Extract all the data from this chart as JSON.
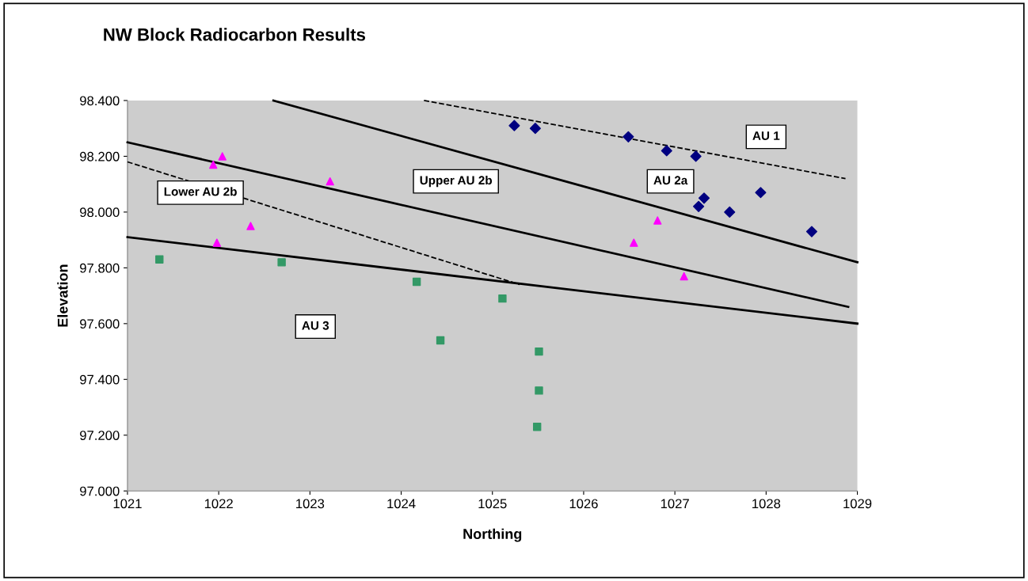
{
  "chart_data": {
    "type": "scatter",
    "title": "NW Block Radiocarbon Results",
    "xlabel": "Northing",
    "ylabel": "Elevation",
    "xlim": [
      1021,
      1029
    ],
    "xticks": [
      1021,
      1022,
      1023,
      1024,
      1025,
      1026,
      1027,
      1028,
      1029
    ],
    "ylim": [
      97.0,
      98.4
    ],
    "yticks": [
      {
        "value": 97.0,
        "label": "97.000"
      },
      {
        "value": 97.2,
        "label": "97.200"
      },
      {
        "value": 97.4,
        "label": "97.400"
      },
      {
        "value": 97.6,
        "label": "97.600"
      },
      {
        "value": 97.8,
        "label": "97.800"
      },
      {
        "value": 98.0,
        "label": "98.000"
      },
      {
        "value": 98.2,
        "label": "98.200"
      },
      {
        "value": 98.4,
        "label": "98.400"
      }
    ],
    "grid": false,
    "legend": false,
    "series": [
      {
        "marker": "diamond",
        "color": "#000080",
        "x": [
          1025.24,
          1025.47,
          1026.49,
          1026.91,
          1027.23,
          1027.32,
          1027.26,
          1027.6,
          1027.94,
          1028.5
        ],
        "values": [
          98.31,
          98.3,
          98.27,
          98.22,
          98.2,
          98.05,
          98.02,
          98.0,
          98.07,
          97.93
        ]
      },
      {
        "marker": "triangle",
        "color": "#ff00ff",
        "x": [
          1022.04,
          1021.94,
          1023.22,
          1022.35,
          1021.98,
          1026.55,
          1026.81,
          1027.1
        ],
        "values": [
          98.2,
          98.17,
          98.11,
          97.95,
          97.89,
          97.89,
          97.97,
          97.77
        ]
      },
      {
        "marker": "square",
        "color": "#339966",
        "x": [
          1021.35,
          1022.69,
          1024.17,
          1025.11,
          1024.43,
          1025.51,
          1025.51,
          1025.49
        ],
        "values": [
          97.83,
          97.82,
          97.75,
          97.69,
          97.54,
          97.5,
          97.36,
          97.23
        ]
      },
      {
        "type": "line",
        "line_style": "dashed",
        "color": "#000000",
        "x": [
          1024.25,
          1028.87
        ],
        "values": [
          98.4,
          98.12
        ]
      },
      {
        "type": "line",
        "line_style": "solid",
        "color": "#000000",
        "x": [
          1022.6,
          1029.0
        ],
        "values": [
          98.4,
          97.82
        ]
      },
      {
        "type": "line",
        "line_style": "solid",
        "color": "#000000",
        "x": [
          1021.0,
          1028.9
        ],
        "values": [
          98.25,
          97.66
        ]
      },
      {
        "type": "line",
        "line_style": "dashed",
        "color": "#000000",
        "x": [
          1021.0,
          1025.3
        ],
        "values": [
          98.18,
          97.74
        ]
      },
      {
        "type": "line",
        "line_style": "solid",
        "color": "#000000",
        "x": [
          1021.0,
          1029.0
        ],
        "values": [
          97.91,
          97.6
        ]
      }
    ],
    "annotations": [
      "AU 1",
      "AU 2a",
      "Upper AU 2b",
      "Lower AU 2b",
      "AU 3"
    ]
  }
}
